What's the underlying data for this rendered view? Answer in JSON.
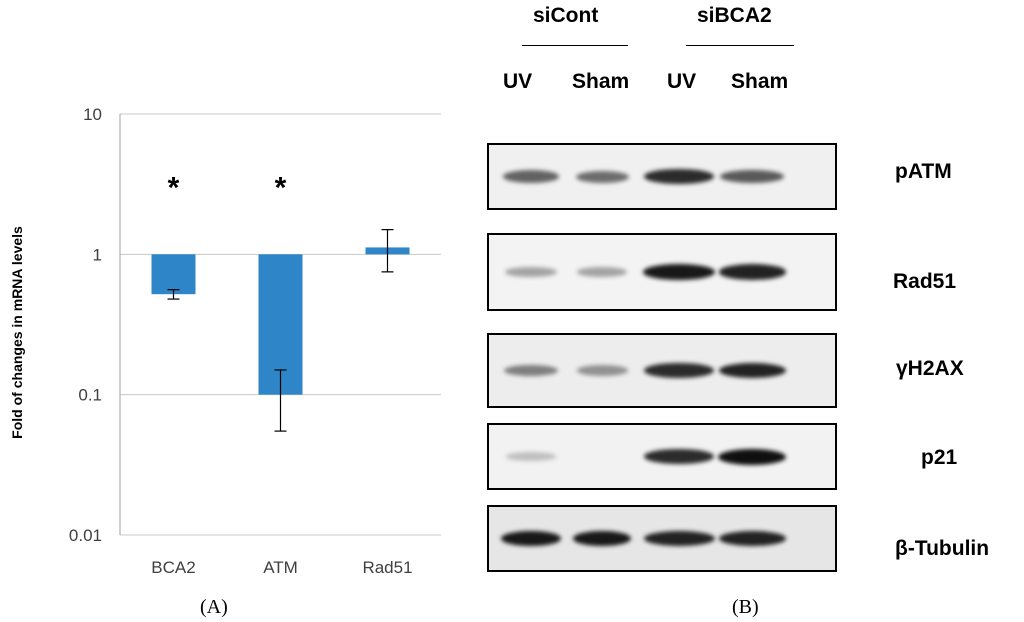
{
  "chart_data": {
    "type": "bar",
    "yscale": "log",
    "ylim": [
      0.01,
      10
    ],
    "ylabel": "Fold of changes in mRNA levels",
    "yticks": [
      "0.01",
      "0.1",
      "1",
      "10"
    ],
    "yticks_values": [
      0.01,
      0.1,
      1,
      10
    ],
    "categories": [
      "BCA2",
      "ATM",
      "Rad51"
    ],
    "values": [
      0.52,
      0.1,
      1.12
    ],
    "error_low": [
      0.48,
      0.055,
      0.75
    ],
    "error_high": [
      0.56,
      0.15,
      1.5
    ],
    "annotations": [
      "*",
      "*",
      ""
    ],
    "bar_color": "#2e86c8",
    "grid": true
  },
  "panel_a_label": "(A)",
  "panel_b_label": "(B)",
  "blot": {
    "groups": [
      {
        "name": "siCont"
      },
      {
        "name": "siBCA2"
      }
    ],
    "lanes": [
      "UV",
      "Sham",
      "UV",
      "Sham"
    ],
    "rows": [
      {
        "label": "pATM",
        "bg": "#f0f0f0",
        "intensities": [
          0.55,
          0.5,
          0.85,
          0.6
        ]
      },
      {
        "label": "Rad51",
        "bg": "#f3f3f3",
        "intensities": [
          0.2,
          0.2,
          0.95,
          0.9
        ]
      },
      {
        "label": "γH2AX",
        "bg": "#ededed",
        "intensities": [
          0.4,
          0.3,
          0.85,
          0.9
        ]
      },
      {
        "label": "p21",
        "bg": "#f2f2f2",
        "intensities": [
          0.05,
          0.0,
          0.85,
          1.0
        ]
      },
      {
        "label": "β-Tubulin",
        "bg": "#e6e6e6",
        "intensities": [
          0.95,
          0.95,
          0.9,
          0.9
        ]
      }
    ]
  }
}
